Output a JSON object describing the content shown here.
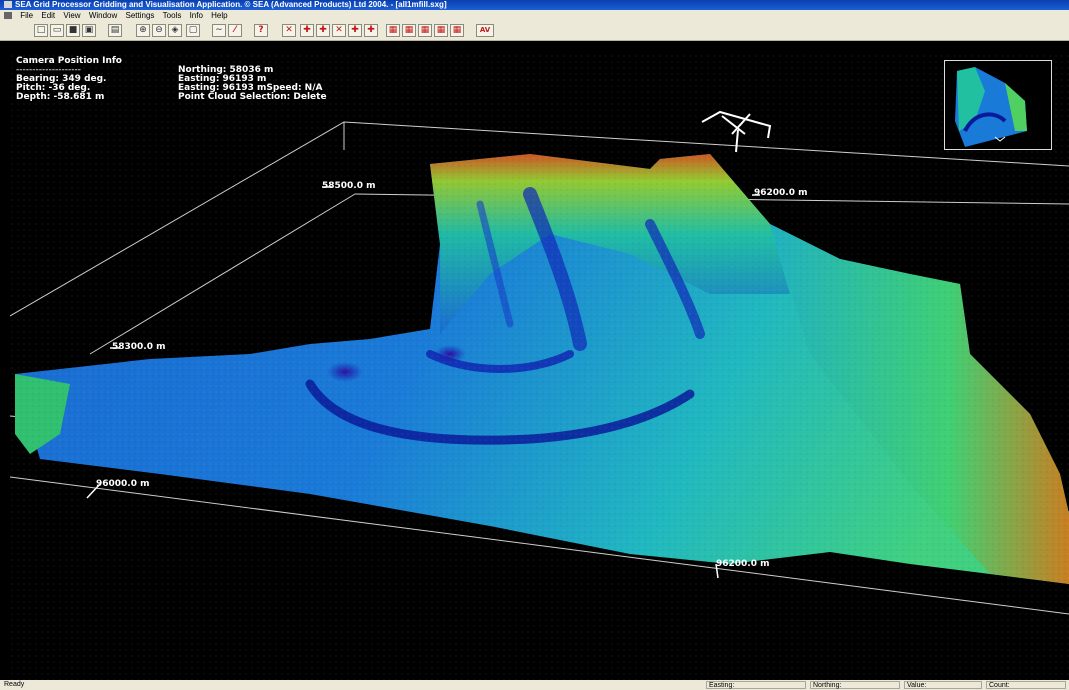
{
  "window": {
    "title": "SEA Grid Processor Gridding and Visualisation Application.  © SEA (Advanced Products) Ltd 2004. - [all1mfill.sxg]"
  },
  "menu": [
    "File",
    "Edit",
    "View",
    "Window",
    "Settings",
    "Tools",
    "Info",
    "Help"
  ],
  "toolbar": {
    "buttons": [
      {
        "name": "new-file-icon",
        "glyph": "□"
      },
      {
        "name": "open-folder-icon",
        "glyph": "▭"
      },
      {
        "name": "save-icon",
        "glyph": "■"
      },
      {
        "name": "export-icon",
        "glyph": "▣"
      },
      {
        "name": "print-icon",
        "glyph": "▤"
      },
      {
        "name": "zoom-in-icon",
        "glyph": "⊕"
      },
      {
        "name": "zoom-out-icon",
        "glyph": "⊖"
      },
      {
        "name": "zoom-fit-icon",
        "glyph": "◈"
      },
      {
        "name": "zoom-box-icon",
        "glyph": "▢"
      },
      {
        "name": "line-icon",
        "glyph": "∼"
      },
      {
        "name": "pencil-icon",
        "glyph": "⁄"
      },
      {
        "name": "help-icon",
        "glyph": "?"
      },
      {
        "name": "grid-tool-1-icon",
        "glyph": "✕"
      },
      {
        "name": "grid-tool-2-icon",
        "glyph": "✚"
      },
      {
        "name": "grid-tool-3-icon",
        "glyph": "✚"
      },
      {
        "name": "grid-tool-4-icon",
        "glyph": "✕"
      },
      {
        "name": "grid-tool-5-icon",
        "glyph": "✚"
      },
      {
        "name": "grid-tool-6-icon",
        "glyph": "✚"
      },
      {
        "name": "grid-tool-7-icon",
        "glyph": "▦"
      },
      {
        "name": "grid-tool-8-icon",
        "glyph": "▦"
      },
      {
        "name": "grid-tool-9-icon",
        "glyph": "▦"
      },
      {
        "name": "grid-tool-10-icon",
        "glyph": "▦"
      },
      {
        "name": "grid-tool-11-icon",
        "glyph": "▦"
      },
      {
        "name": "av-icon",
        "glyph": "AV"
      }
    ]
  },
  "camera_info": {
    "title": "Camera Position Info",
    "separator": "--------------------",
    "bearing": "Bearing: 349 deg.",
    "pitch": "Pitch: -36 deg.",
    "depth": "Depth: -58.681 m",
    "northing": "Northing: 58036 m",
    "easting": "Easting: 96193 m",
    "easting_speed": "Easting: 96193 mSpeed: N/A",
    "point_cloud": "Point Cloud Selection: Delete"
  },
  "axis_labels": {
    "n1": "58500.0 m",
    "n2": "58300.0 m",
    "e1": "96200.0 m",
    "e2": "96000.0 m",
    "e3": "96200.0 m"
  },
  "status": {
    "ready": "Ready",
    "easting": "Easting:",
    "northing": "Northing:",
    "value": "Value:",
    "count": "Count:"
  },
  "colors": {
    "terrain_deep": "#0a1a9a",
    "terrain_mid": "#1a7ad8",
    "terrain_shallow": "#20c0b0",
    "terrain_high": "#70d020",
    "terrain_peak": "#e06010"
  }
}
